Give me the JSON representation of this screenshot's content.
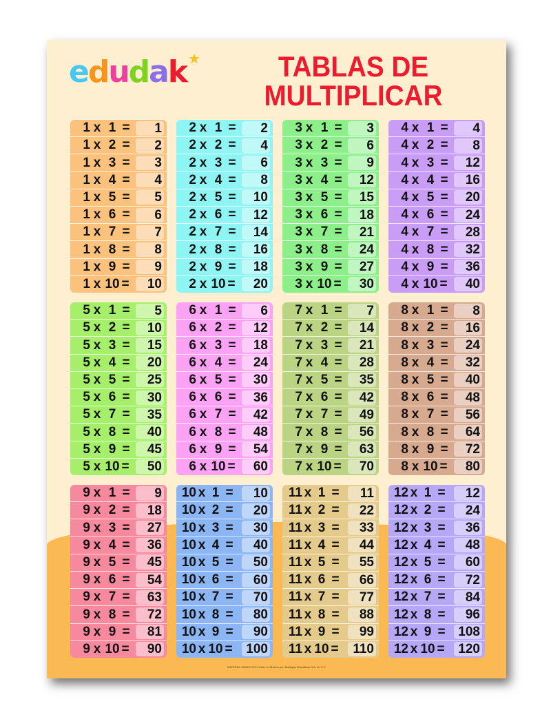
{
  "logo": {
    "text": "edudak",
    "letters": [
      {
        "ch": "e",
        "color": "#48c8f0"
      },
      {
        "ch": "d",
        "color": "#f7941d"
      },
      {
        "ch": "u",
        "color": "#ec3fa0"
      },
      {
        "ch": "d",
        "color": "#7ed321"
      },
      {
        "ch": "a",
        "color": "#8a6fe8"
      },
      {
        "ch": "k",
        "color": "#ec1c2e"
      }
    ],
    "star_color": "#f7c21c"
  },
  "title": {
    "line1": "TABLAS DE",
    "line2": "MULTIPLICAR",
    "color": "#ec1c2e"
  },
  "symbols": {
    "times": "x",
    "equals": "="
  },
  "tables": [
    {
      "n": 1,
      "color": "#fbc27e",
      "results": [
        1,
        2,
        3,
        4,
        5,
        6,
        7,
        8,
        9,
        10
      ]
    },
    {
      "n": 2,
      "color": "#8ff4f4",
      "results": [
        2,
        4,
        6,
        8,
        10,
        12,
        14,
        16,
        18,
        20
      ]
    },
    {
      "n": 3,
      "color": "#8def8a",
      "results": [
        3,
        6,
        9,
        12,
        15,
        18,
        21,
        24,
        27,
        30
      ]
    },
    {
      "n": 4,
      "color": "#c99cf6",
      "results": [
        4,
        8,
        12,
        16,
        20,
        24,
        28,
        32,
        36,
        40
      ]
    },
    {
      "n": 5,
      "color": "#a6ef6b",
      "results": [
        5,
        10,
        15,
        20,
        25,
        30,
        35,
        40,
        45,
        50
      ]
    },
    {
      "n": 6,
      "color": "#fba2f4",
      "results": [
        6,
        12,
        18,
        24,
        30,
        36,
        42,
        48,
        54,
        60
      ]
    },
    {
      "n": 7,
      "color": "#bad484",
      "results": [
        7,
        14,
        21,
        28,
        35,
        42,
        49,
        56,
        63,
        70
      ]
    },
    {
      "n": 8,
      "color": "#d7aa90",
      "results": [
        8,
        16,
        24,
        32,
        40,
        48,
        56,
        64,
        72,
        80
      ]
    },
    {
      "n": 9,
      "color": "#f7899f",
      "results": [
        9,
        18,
        27,
        36,
        45,
        54,
        63,
        72,
        81,
        90
      ]
    },
    {
      "n": 10,
      "color": "#8cb5f4",
      "results": [
        10,
        20,
        30,
        40,
        50,
        60,
        70,
        80,
        90,
        100
      ]
    },
    {
      "n": 11,
      "color": "#e4ca8b",
      "results": [
        11,
        22,
        33,
        44,
        55,
        66,
        77,
        88,
        99,
        110
      ]
    },
    {
      "n": 12,
      "color": "#b6a7f7",
      "results": [
        12,
        24,
        36,
        48,
        60,
        72,
        84,
        96,
        108,
        120
      ]
    }
  ],
  "colors": {
    "background": "#fdefcf",
    "bottom_band": "#fbb954"
  },
  "footer": "MATERIAL DIDÁCTICO Hecho en México por: Bodegas Educativas S.A. de C.V."
}
